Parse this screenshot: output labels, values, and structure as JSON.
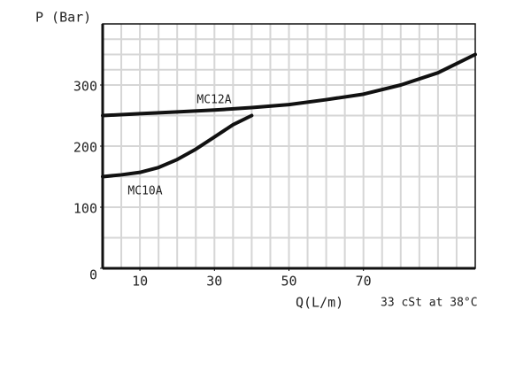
{
  "chart_data": {
    "type": "line",
    "y_label": "P (Bar)",
    "x_label": "Q(L/m)",
    "note": "33 cSt at 38°C",
    "xlim": [
      0,
      100
    ],
    "ylim": [
      0,
      400
    ],
    "xticks": [
      10,
      30,
      50,
      70
    ],
    "yticks": [
      0,
      100,
      200,
      300
    ],
    "grid": true,
    "xgrid": [
      5,
      10,
      15,
      20,
      25,
      30,
      35,
      40,
      45,
      50,
      55,
      60,
      65,
      70,
      75,
      80,
      85,
      90,
      95
    ],
    "ygrid": [
      50,
      100,
      150,
      200,
      250,
      300,
      325,
      350,
      375
    ],
    "series": [
      {
        "name": "MC12A",
        "color": "#111111",
        "x": [
          0,
          10,
          20,
          30,
          40,
          50,
          60,
          70,
          80,
          90,
          100
        ],
        "values": [
          250,
          253,
          256,
          259,
          263,
          268,
          276,
          285,
          300,
          320,
          350
        ]
      },
      {
        "name": "MC10A",
        "color": "#111111",
        "x": [
          0,
          5,
          10,
          15,
          20,
          25,
          30,
          35,
          40
        ],
        "values": [
          150,
          153,
          157,
          165,
          178,
          195,
          215,
          235,
          250
        ]
      }
    ]
  }
}
